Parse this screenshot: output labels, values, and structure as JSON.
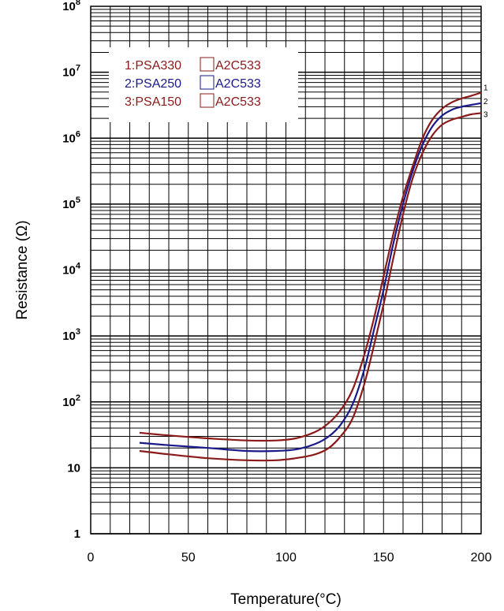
{
  "chart_data": {
    "type": "line",
    "xlabel": "Temperature(°C)",
    "ylabel": "Resistance (Ω)",
    "x_scale": "linear",
    "y_scale": "log",
    "xlim": [
      0,
      200
    ],
    "ylim": [
      1,
      100000000
    ],
    "grid": true,
    "legend_position": "top-left",
    "x_ticks": [
      "0",
      "50",
      "100",
      "150",
      "200"
    ],
    "y_ticks": [
      {
        "base": "1",
        "exp": ""
      },
      {
        "base": "10",
        "exp": ""
      },
      {
        "base": "10",
        "exp": "2"
      },
      {
        "base": "10",
        "exp": "3"
      },
      {
        "base": "10",
        "exp": "4"
      },
      {
        "base": "10",
        "exp": "5"
      },
      {
        "base": "10",
        "exp": "6"
      },
      {
        "base": "10",
        "exp": "7"
      },
      {
        "base": "10",
        "exp": "8"
      }
    ],
    "legend_items": [
      {
        "prefix": "1:PSA330",
        "suffix": "A2C533",
        "color": "#8b1a1a"
      },
      {
        "prefix": "2:PSA250",
        "suffix": "A2C533",
        "color": "#1a1a8b"
      },
      {
        "prefix": "3:PSA150",
        "suffix": "A2C533",
        "color": "#8b1a1a"
      }
    ],
    "series": [
      {
        "label": "1",
        "color": "#8b1a1a",
        "points": [
          [
            25,
            34
          ],
          [
            40,
            31
          ],
          [
            60,
            28
          ],
          [
            80,
            26
          ],
          [
            95,
            26
          ],
          [
            105,
            28
          ],
          [
            115,
            35
          ],
          [
            122,
            48
          ],
          [
            128,
            75
          ],
          [
            134,
            150
          ],
          [
            140,
            500
          ],
          [
            145,
            1800
          ],
          [
            150,
            8000
          ],
          [
            155,
            35000
          ],
          [
            160,
            130000
          ],
          [
            165,
            380000
          ],
          [
            170,
            1000000
          ],
          [
            175,
            1900000
          ],
          [
            180,
            2800000
          ],
          [
            185,
            3500000
          ],
          [
            190,
            4000000
          ],
          [
            195,
            4400000
          ],
          [
            200,
            4900000
          ]
        ]
      },
      {
        "label": "2",
        "color": "#1a1a8b",
        "points": [
          [
            25,
            24
          ],
          [
            40,
            22
          ],
          [
            60,
            20
          ],
          [
            80,
            18
          ],
          [
            95,
            18
          ],
          [
            105,
            19
          ],
          [
            115,
            23
          ],
          [
            122,
            30
          ],
          [
            128,
            45
          ],
          [
            134,
            90
          ],
          [
            140,
            300
          ],
          [
            145,
            1200
          ],
          [
            150,
            5000
          ],
          [
            155,
            25000
          ],
          [
            160,
            100000
          ],
          [
            165,
            320000
          ],
          [
            170,
            800000
          ],
          [
            175,
            1500000
          ],
          [
            180,
            2200000
          ],
          [
            185,
            2700000
          ],
          [
            190,
            3000000
          ],
          [
            195,
            3200000
          ],
          [
            200,
            3400000
          ]
        ]
      },
      {
        "label": "3",
        "color": "#8b1a1a",
        "points": [
          [
            25,
            18
          ],
          [
            40,
            16
          ],
          [
            60,
            14
          ],
          [
            80,
            13
          ],
          [
            95,
            13
          ],
          [
            105,
            14
          ],
          [
            115,
            16
          ],
          [
            122,
            20
          ],
          [
            128,
            30
          ],
          [
            134,
            55
          ],
          [
            140,
            180
          ],
          [
            145,
            700
          ],
          [
            150,
            3000
          ],
          [
            155,
            15000
          ],
          [
            160,
            70000
          ],
          [
            165,
            250000
          ],
          [
            170,
            600000
          ],
          [
            175,
            1100000
          ],
          [
            180,
            1600000
          ],
          [
            185,
            1900000
          ],
          [
            190,
            2100000
          ],
          [
            195,
            2300000
          ],
          [
            200,
            2400000
          ]
        ]
      }
    ]
  }
}
